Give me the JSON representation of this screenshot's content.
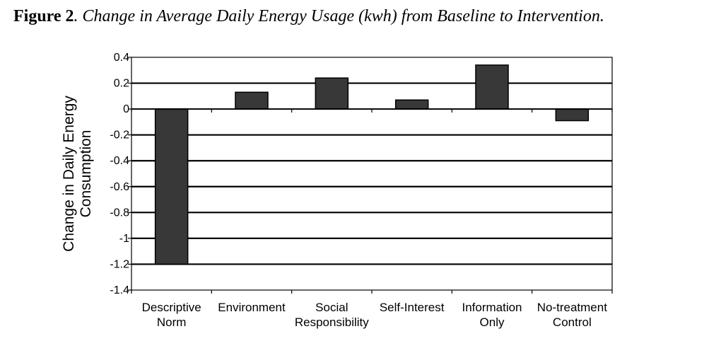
{
  "caption": {
    "number": "Figure 2",
    "title": ". Change in Average Daily Energy Usage (kwh) from Baseline to Intervention."
  },
  "chart_data": {
    "type": "bar",
    "categories": [
      [
        "Descriptive",
        "Norm"
      ],
      [
        "Environment"
      ],
      [
        "Social",
        "Responsibility"
      ],
      [
        "Self-Interest"
      ],
      [
        "Information",
        "Only"
      ],
      [
        "No-treatment",
        "Control"
      ]
    ],
    "values": [
      -1.2,
      0.13,
      0.24,
      0.07,
      0.34,
      -0.09
    ],
    "ylabel": [
      "Change in Daily Energy",
      "Consumption"
    ],
    "ylim": [
      -1.4,
      0.4
    ],
    "yticks": [
      "0.4",
      "0.2",
      "0",
      "-0.2",
      "-0.4",
      "-0.6",
      "-0.8",
      "-1",
      "-1.2",
      "-1.4"
    ],
    "grid": true,
    "bar_color": "#383838",
    "grid_color": "#000000"
  }
}
